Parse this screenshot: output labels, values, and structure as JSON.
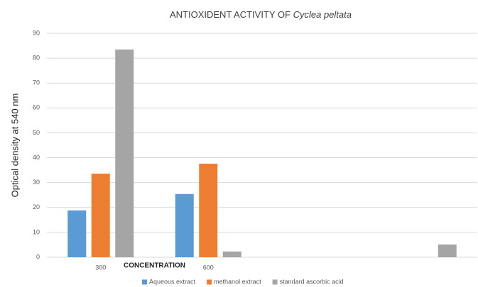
{
  "chart_data": {
    "type": "bar",
    "title": [
      "ANTIOXIDENT ACTIVITY OF",
      "Cyclea peltata"
    ],
    "x_label": "CONCENTRATION",
    "y_label": "Optical density at 540 nm",
    "categories": [
      "300",
      "600",
      null,
      null
    ],
    "series": [
      {
        "name": "Aqueous extract",
        "color": "#5b9bd5",
        "values": [
          18.8,
          25.4,
          null,
          null
        ]
      },
      {
        "name": "methanol extract",
        "color": "#ed7d31",
        "values": [
          33.6,
          37.6,
          null,
          null
        ]
      },
      {
        "name": "standard ascorbic acid",
        "color": "#a5a5a5",
        "values": [
          83.5,
          2.3,
          null,
          5.1
        ]
      }
    ],
    "ylim": [
      0,
      90
    ],
    "yticks": [
      0,
      10,
      20,
      30,
      40,
      50,
      60,
      70,
      80,
      90
    ],
    "grid": true,
    "legend": "bottom"
  }
}
